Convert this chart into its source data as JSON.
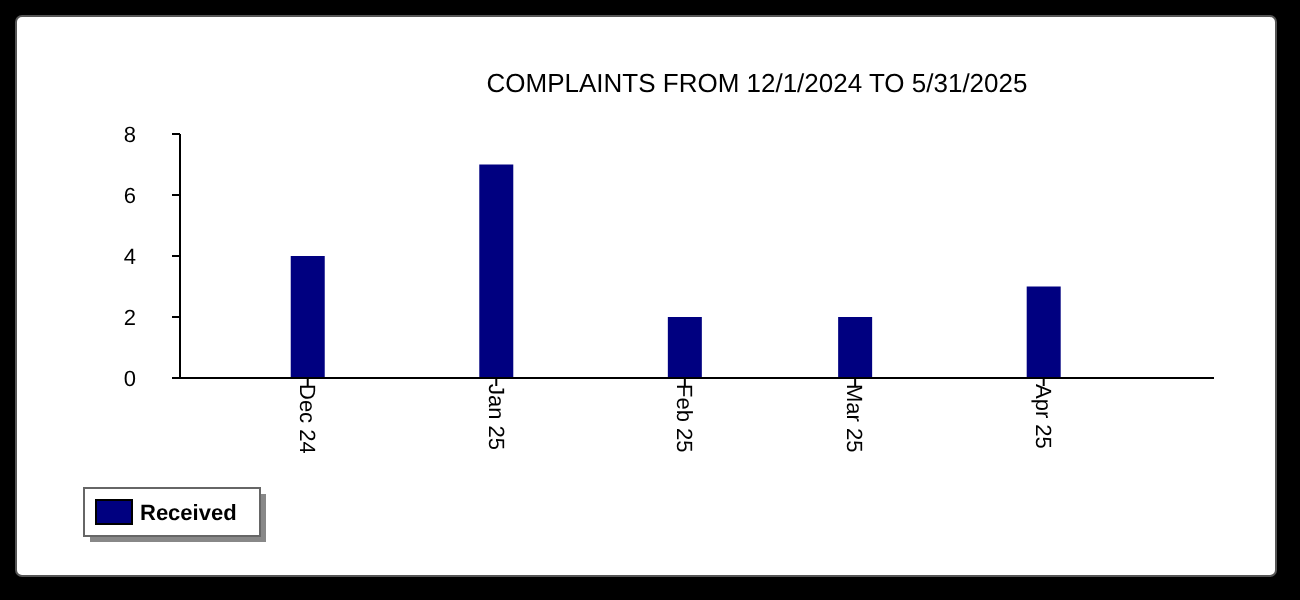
{
  "chart_data": {
    "type": "bar",
    "title": "COMPLAINTS FROM 12/1/2024 TO 5/31/2025",
    "x": [
      "2024-12",
      "2025-01",
      "2025-02",
      "2025-03",
      "2025-04"
    ],
    "series": [
      {
        "name": "Received",
        "color": "#000080",
        "values": [
          4,
          7,
          2,
          2,
          3
        ]
      }
    ],
    "xlim": [
      "2024-11-10",
      "2025-04-29"
    ],
    "xticks": [
      {
        "value": "2024-12",
        "label": "Dec 24"
      },
      {
        "value": "2025-01",
        "label": "Jan 25"
      },
      {
        "value": "2025-02",
        "label": "Feb 25"
      },
      {
        "value": "2025-03",
        "label": "Mar 25"
      },
      {
        "value": "2025-04",
        "label": "Apr 25"
      }
    ],
    "ylim": [
      0,
      8
    ],
    "yticks": [
      0,
      2,
      4,
      6,
      8
    ],
    "grid": false,
    "legend": "bottom left"
  }
}
